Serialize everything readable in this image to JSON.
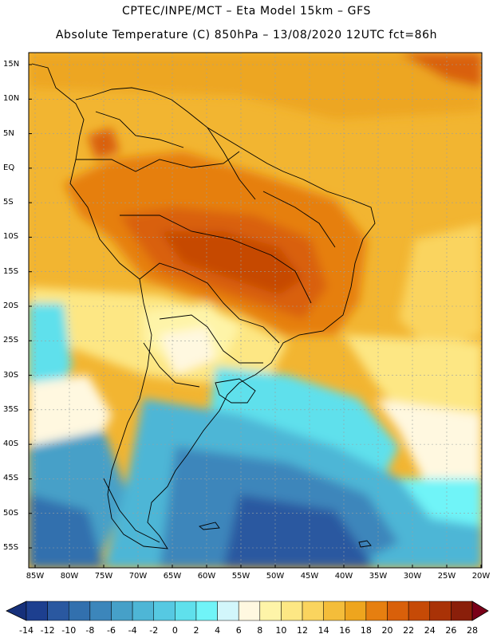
{
  "header": {
    "line1": "CPTEC/INPE/MCT –  Eta Model 15km – GFS",
    "line2": "Absolute Temperature (C) 850hPa – 13/08/2020 12UTC fct=86h"
  },
  "map": {
    "lat_labels": [
      "15N",
      "10N",
      "5N",
      "EQ",
      "5S",
      "10S",
      "15S",
      "20S",
      "25S",
      "30S",
      "35S",
      "40S",
      "45S",
      "50S",
      "55S"
    ],
    "lon_labels": [
      "85W",
      "80W",
      "75W",
      "70W",
      "65W",
      "60W",
      "55W",
      "50W",
      "45W",
      "40W",
      "35W",
      "30W",
      "25W",
      "20W"
    ]
  },
  "colorbar": {
    "labels": [
      "-14",
      "-12",
      "-10",
      "-8",
      "-6",
      "-4",
      "-2",
      "0",
      "2",
      "4",
      "6",
      "8",
      "10",
      "12",
      "14",
      "16",
      "18",
      "20",
      "22",
      "24",
      "26",
      "28"
    ],
    "colors": [
      "#1d3f8f",
      "#2a58a0",
      "#3270ae",
      "#3c86bb",
      "#46a0c8",
      "#4eb6d6",
      "#56c9e2",
      "#5fe0ec",
      "#70f4f8",
      "#d2f6fb",
      "#fff8e0",
      "#fef4a8",
      "#fde784",
      "#fad45e",
      "#f4bd3a",
      "#eea51e",
      "#e67f10",
      "#d9600a",
      "#c64a06",
      "#a93206",
      "#8a1f0a"
    ],
    "under_color": "#16307a",
    "over_color": "#7a0018"
  }
}
